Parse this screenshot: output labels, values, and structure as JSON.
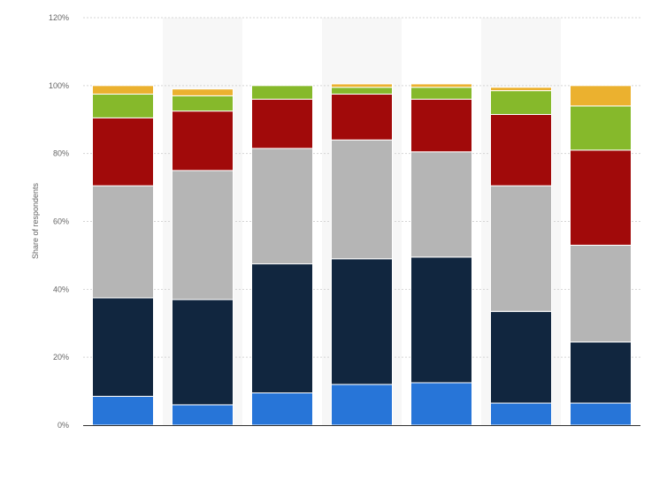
{
  "chart_data": {
    "type": "bar",
    "stacked": true,
    "ylabel": "Share of respondents",
    "ylim": [
      0,
      120
    ],
    "yticks": [
      0,
      20,
      40,
      60,
      80,
      100,
      120
    ],
    "ytick_suffix": "%",
    "grid": true,
    "categories": [
      "",
      "",
      "",
      "",
      "",
      "",
      ""
    ],
    "series": [
      {
        "color": "#2775d8",
        "values": [
          8.5,
          6,
          9.5,
          12,
          12.5,
          6.5,
          6.5
        ]
      },
      {
        "color": "#11263f",
        "values": [
          29,
          31,
          38,
          37,
          37,
          27,
          18
        ]
      },
      {
        "color": "#b5b5b5",
        "values": [
          33,
          38,
          34,
          35,
          31,
          37,
          28.5
        ]
      },
      {
        "color": "#a10a0a",
        "values": [
          20,
          17.5,
          14.5,
          13.5,
          15.5,
          21,
          28
        ]
      },
      {
        "color": "#86b92b",
        "values": [
          7,
          4.5,
          4,
          2,
          3.5,
          7,
          13
        ]
      },
      {
        "color": "#ebb12f",
        "values": [
          2.5,
          2,
          0,
          1,
          1,
          1,
          6
        ]
      }
    ]
  }
}
